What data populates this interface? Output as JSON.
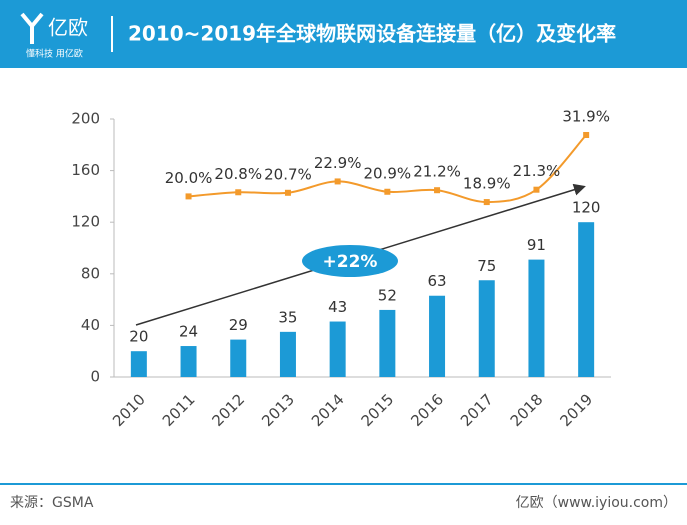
{
  "header": {
    "logo": "亿欧",
    "slogan": "懂科技 用亿欧"
  },
  "chart_data": {
    "type": "bar-line",
    "title": "2010~2019年全球物联网设备连接量（亿）及变化率",
    "annotation": "+22%",
    "categories": [
      "2010",
      "2011",
      "2012",
      "2013",
      "2014",
      "2015",
      "2016",
      "2017",
      "2018",
      "2019"
    ],
    "ylim": [
      0,
      200
    ],
    "yticks": [
      0,
      40,
      80,
      120,
      160,
      200
    ],
    "y2lim": [
      -15,
      35
    ],
    "series": [
      {
        "name": "连接量",
        "color": "#1c9ad6",
        "values": [
          20,
          24,
          29,
          35,
          43,
          52,
          63,
          75,
          91,
          120
        ]
      },
      {
        "name": "变化率",
        "color": "#f39a2b",
        "axis": "y2",
        "values": [
          null,
          20.0,
          20.8,
          20.7,
          22.9,
          20.9,
          21.2,
          18.9,
          21.3,
          31.9
        ],
        "value_labels": [
          null,
          "20.0%",
          "20.8%",
          "20.7%",
          "22.9%",
          "20.9%",
          "21.2%",
          "18.9%",
          "21.3%",
          "31.9%"
        ]
      }
    ]
  },
  "footer": {
    "source": "来源：GSMA",
    "site": "亿欧（www.iyiou.com）"
  }
}
